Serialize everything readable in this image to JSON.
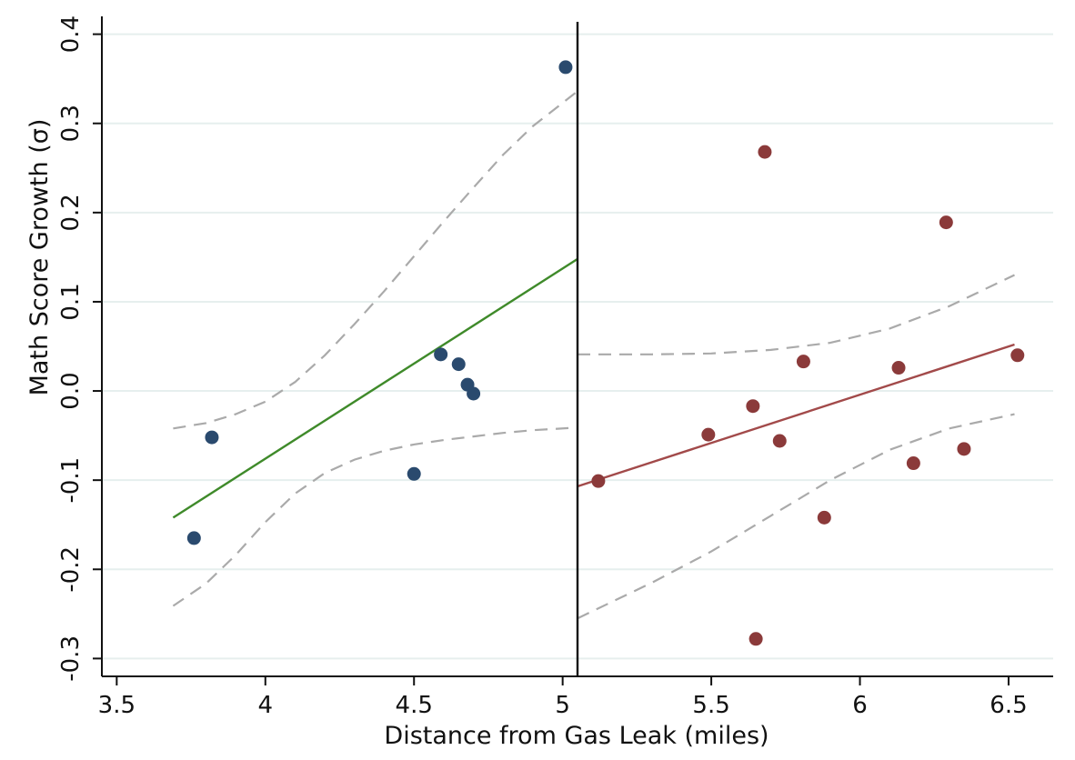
{
  "chart_data": {
    "type": "scatter",
    "xlabel": "Distance from Gas Leak (miles)",
    "ylabel": "Math Score Growth (σ)",
    "xlim": [
      3.45,
      6.65
    ],
    "ylim": [
      -0.32,
      0.42
    ],
    "x_ticks": [
      3.5,
      4,
      4.5,
      5,
      5.5,
      6,
      6.5
    ],
    "x_tick_labels": [
      "3.5",
      "4",
      "4.5",
      "5",
      "5.5",
      "6",
      "6.5"
    ],
    "y_ticks": [
      -0.3,
      -0.2,
      -0.1,
      0.0,
      0.1,
      0.2,
      0.3,
      0.4
    ],
    "y_tick_labels": [
      "-0.3",
      "-0.2",
      "-0.1",
      "0.0",
      "0.1",
      "0.2",
      "0.3",
      "0.4"
    ],
    "grid": "horizontal",
    "cutoff": 5.05,
    "colors": {
      "left_points": "#2a4a6e",
      "right_points": "#8b3a3a",
      "left_fit": "#3f8a2a",
      "right_fit": "#a24a4a",
      "ci": "#aaaaaa",
      "cutoff": "#111111",
      "grid": "#e6efee"
    },
    "series": [
      {
        "kind": "points",
        "color_key": "left_points",
        "x": [
          3.76,
          3.82,
          4.5,
          4.59,
          4.65,
          4.68,
          4.7,
          5.01
        ],
        "y": [
          -0.165,
          -0.052,
          -0.093,
          0.041,
          0.03,
          0.007,
          -0.003,
          0.363
        ]
      },
      {
        "kind": "points",
        "color_key": "right_points",
        "x": [
          5.12,
          5.49,
          5.64,
          5.65,
          5.68,
          5.73,
          5.81,
          5.88,
          6.13,
          6.18,
          6.29,
          6.35,
          6.53
        ],
        "y": [
          -0.101,
          -0.049,
          -0.017,
          -0.278,
          0.268,
          -0.056,
          0.033,
          -0.142,
          0.026,
          -0.081,
          0.189,
          -0.065,
          0.04
        ]
      },
      {
        "kind": "fit",
        "color_key": "left_fit",
        "x": [
          3.69,
          5.05
        ],
        "y": [
          -0.142,
          0.148
        ]
      },
      {
        "kind": "fit",
        "color_key": "right_fit",
        "x": [
          5.05,
          6.52
        ],
        "y": [
          -0.107,
          0.052
        ]
      },
      {
        "kind": "ci",
        "color_key": "ci",
        "x": [
          3.69,
          3.8,
          3.9,
          4.0,
          4.1,
          4.2,
          4.3,
          4.4,
          4.5,
          4.6,
          4.7,
          4.8,
          4.9,
          5.05
        ],
        "y": [
          -0.042,
          -0.036,
          -0.026,
          -0.012,
          0.01,
          0.04,
          0.075,
          0.112,
          0.151,
          0.19,
          0.228,
          0.265,
          0.297,
          0.336
        ]
      },
      {
        "kind": "ci",
        "color_key": "ci",
        "x": [
          3.69,
          3.8,
          3.9,
          4.0,
          4.1,
          4.2,
          4.3,
          4.4,
          4.5,
          4.6,
          4.7,
          4.8,
          4.9,
          5.05
        ],
        "y": [
          -0.241,
          -0.216,
          -0.184,
          -0.147,
          -0.115,
          -0.092,
          -0.077,
          -0.067,
          -0.06,
          -0.055,
          -0.051,
          -0.047,
          -0.044,
          -0.041
        ]
      },
      {
        "kind": "ci",
        "color_key": "ci",
        "x": [
          5.05,
          5.3,
          5.5,
          5.7,
          5.9,
          6.1,
          6.3,
          6.52
        ],
        "y": [
          0.041,
          0.041,
          0.042,
          0.046,
          0.054,
          0.07,
          0.095,
          0.13
        ]
      },
      {
        "kind": "ci",
        "color_key": "ci",
        "x": [
          5.05,
          5.3,
          5.5,
          5.7,
          5.9,
          6.1,
          6.3,
          6.52
        ],
        "y": [
          -0.255,
          -0.215,
          -0.18,
          -0.14,
          -0.1,
          -0.066,
          -0.042,
          -0.026
        ]
      }
    ]
  }
}
